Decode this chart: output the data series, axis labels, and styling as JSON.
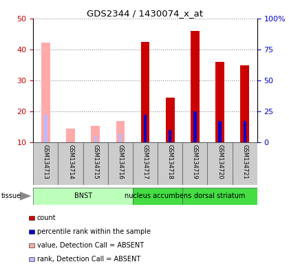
{
  "title": "GDS2344 / 1430074_x_at",
  "samples": [
    "GSM134713",
    "GSM134714",
    "GSM134715",
    "GSM134716",
    "GSM134717",
    "GSM134718",
    "GSM134719",
    "GSM134720",
    "GSM134721"
  ],
  "value_absent": [
    42.2,
    14.5,
    15.5,
    17.0,
    0,
    0,
    0,
    0,
    0
  ],
  "rank_absent": [
    19.0,
    0,
    12.0,
    13.0,
    0,
    0,
    0,
    0,
    0
  ],
  "value_present": [
    0,
    0,
    0,
    0,
    42.5,
    24.5,
    46.0,
    36.0,
    35.0
  ],
  "rank_present": [
    0,
    0,
    0,
    0,
    19.0,
    14.0,
    20.0,
    17.0,
    17.0
  ],
  "ylim_left": [
    10,
    50
  ],
  "ylim_right": [
    0,
    100
  ],
  "tissue_groups": [
    {
      "label": "BNST",
      "start": 0,
      "end": 3,
      "color": "#bbffbb"
    },
    {
      "label": "nucleus accumbens",
      "start": 4,
      "end": 5,
      "color": "#44dd44"
    },
    {
      "label": "dorsal striatum",
      "start": 6,
      "end": 8,
      "color": "#44dd44"
    }
  ],
  "color_red": "#cc0000",
  "color_blue": "#0000cc",
  "color_pink": "#ffaaaa",
  "color_lightblue": "#bbbbff",
  "bar_width": 0.35,
  "rank_bar_width": 0.12,
  "background_color": "#ffffff",
  "plot_bg": "#ffffff",
  "grid_color": "#888888",
  "label_box_color": "#cccccc",
  "ylabel_left_color": "#cc0000",
  "ylabel_right_color": "#0000cc"
}
